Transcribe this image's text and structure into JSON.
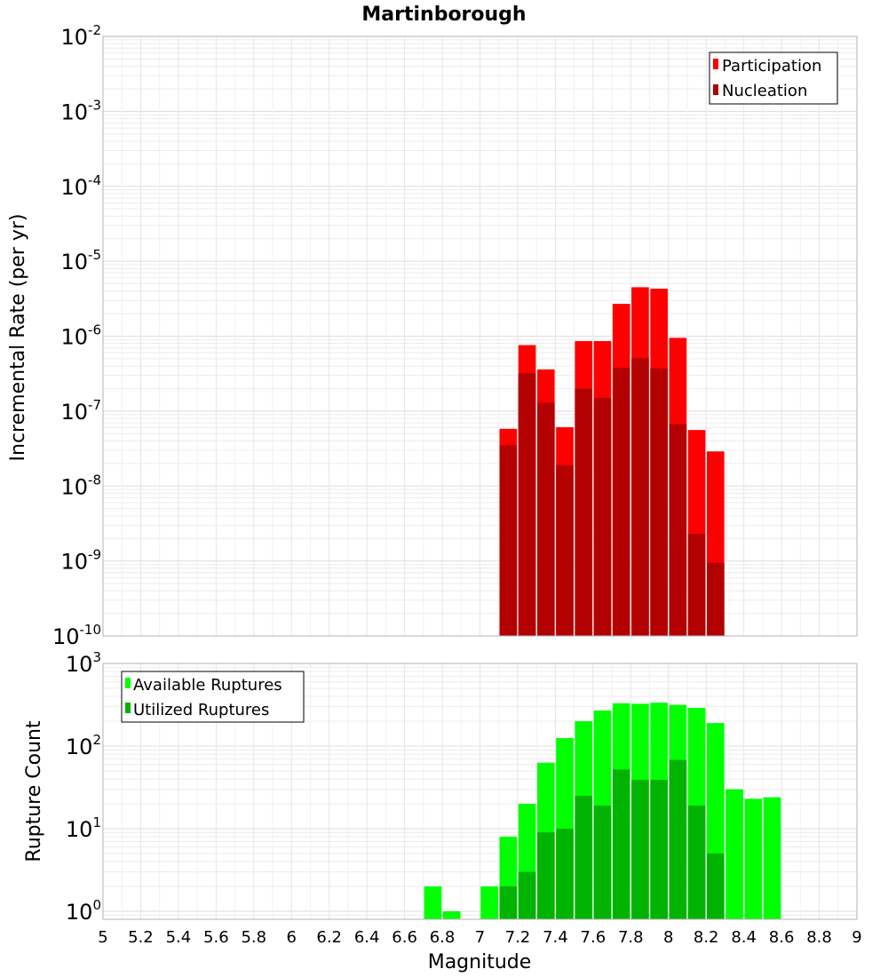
{
  "chart_data": [
    {
      "type": "bar",
      "title": "Martinborough",
      "ylabel": "Incremental Rate (per yr)",
      "xlabel": "",
      "yscale": "log",
      "ylim": [
        1e-10,
        0.01
      ],
      "xlim": [
        5,
        9
      ],
      "bin_width": 0.1,
      "ytick_labels": [
        {
          "base": "10",
          "exp": "-10"
        },
        {
          "base": "10",
          "exp": "-9"
        },
        {
          "base": "10",
          "exp": "-8"
        },
        {
          "base": "10",
          "exp": "-7"
        },
        {
          "base": "10",
          "exp": "-6"
        },
        {
          "base": "10",
          "exp": "-5"
        },
        {
          "base": "10",
          "exp": "-4"
        },
        {
          "base": "10",
          "exp": "-3"
        },
        {
          "base": "10",
          "exp": "-2"
        }
      ],
      "grid": true,
      "legend_position": "top-right",
      "series": [
        {
          "name": "Participation",
          "color": "#ff0000",
          "x": [
            7.15,
            7.25,
            7.35,
            7.45,
            7.55,
            7.65,
            7.75,
            7.85,
            7.95,
            8.05,
            8.15,
            8.25
          ],
          "values": [
            5.8e-08,
            7.6e-07,
            3.6e-07,
            6.1e-08,
            8.6e-07,
            8.6e-07,
            2.7e-06,
            4.5e-06,
            4.3e-06,
            9.5e-07,
            5.6e-08,
            2.9e-08
          ]
        },
        {
          "name": "Nucleation",
          "color": "#b30000",
          "x": [
            7.15,
            7.25,
            7.35,
            7.45,
            7.55,
            7.65,
            7.75,
            7.85,
            7.95,
            8.05,
            8.15,
            8.25
          ],
          "values": [
            3.5e-08,
            3.2e-07,
            1.3e-07,
            1.9e-08,
            2e-07,
            1.5e-07,
            3.8e-07,
            5.1e-07,
            3.7e-07,
            6.7e-08,
            2.3e-09,
            9.5e-10
          ]
        }
      ]
    },
    {
      "type": "bar",
      "title": "",
      "ylabel": "Rupture Count",
      "xlabel": "Magnitude",
      "yscale": "log",
      "ylim": [
        0.8,
        1000
      ],
      "xlim": [
        5,
        9
      ],
      "bin_width": 0.1,
      "ytick_labels": [
        {
          "base": "10",
          "exp": "0"
        },
        {
          "base": "10",
          "exp": "1"
        },
        {
          "base": "10",
          "exp": "2"
        },
        {
          "base": "10",
          "exp": "3"
        }
      ],
      "xtick_labels": [
        "5",
        "5.2",
        "5.4",
        "5.6",
        "5.8",
        "6",
        "6.2",
        "6.4",
        "6.6",
        "6.8",
        "7",
        "7.2",
        "7.4",
        "7.6",
        "7.8",
        "8",
        "8.2",
        "8.4",
        "8.6",
        "8.8",
        "9"
      ],
      "grid": true,
      "legend_position": "top-left",
      "series": [
        {
          "name": "Available Ruptures",
          "color": "#00ff00",
          "x": [
            6.75,
            6.85,
            7.05,
            7.15,
            7.25,
            7.35,
            7.45,
            7.55,
            7.65,
            7.75,
            7.85,
            7.95,
            8.05,
            8.15,
            8.25,
            8.35,
            8.45,
            8.55
          ],
          "values": [
            2,
            1,
            2,
            8,
            20,
            63,
            125,
            200,
            270,
            330,
            325,
            335,
            315,
            290,
            190,
            30,
            23,
            24
          ]
        },
        {
          "name": "Utilized Ruptures",
          "color": "#00b300",
          "x": [
            7.15,
            7.25,
            7.35,
            7.45,
            7.55,
            7.65,
            7.75,
            7.85,
            7.95,
            8.05,
            8.15,
            8.25
          ],
          "values": [
            2,
            3,
            9,
            10,
            25,
            19,
            52,
            39,
            39,
            68,
            19,
            5
          ]
        }
      ]
    }
  ]
}
